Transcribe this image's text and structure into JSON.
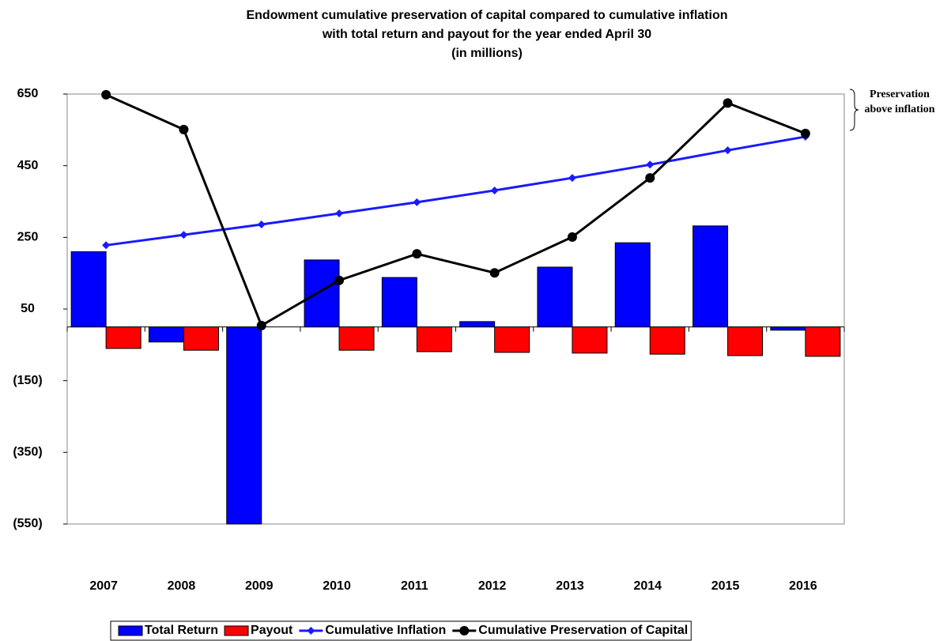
{
  "chart_data": {
    "type": "combo",
    "title": [
      "Endowment cumulative preservation of capital compared to cumulative inflation",
      "with total return and payout for the year ended April 30",
      "(in millions)"
    ],
    "annotation": "Preservation above inflation",
    "categories": [
      "2007",
      "2008",
      "2009",
      "2010",
      "2011",
      "2012",
      "2013",
      "2014",
      "2015",
      "2016"
    ],
    "series": [
      {
        "name": "Total Return",
        "type": "bar",
        "color": "#0000ff",
        "values": [
          210,
          -42,
          -550,
          187,
          138,
          15,
          167,
          235,
          282,
          -9
        ]
      },
      {
        "name": "Payout",
        "type": "bar",
        "color": "#ff0000",
        "values": [
          -60,
          -65,
          null,
          -65,
          -69,
          -71,
          -73,
          -76,
          -80,
          -82
        ]
      },
      {
        "name": "Cumulative Inflation",
        "type": "line",
        "marker": "diamond",
        "color": "#1a1aff",
        "values": [
          228,
          257,
          286,
          317,
          348,
          381,
          416,
          453,
          493,
          531
        ]
      },
      {
        "name": "Cumulative Preservation of Capital",
        "type": "line",
        "marker": "circle",
        "color": "#000000",
        "values": [
          648,
          551,
          4,
          130,
          204,
          151,
          251,
          416,
          625,
          540
        ]
      }
    ],
    "ylim": [
      -550,
      650
    ],
    "yticks": [
      {
        "value": -550,
        "label": "(550)"
      },
      {
        "value": -350,
        "label": "(350)"
      },
      {
        "value": -150,
        "label": "(150)"
      },
      50,
      250,
      450,
      650
    ],
    "legend": "bottom"
  }
}
